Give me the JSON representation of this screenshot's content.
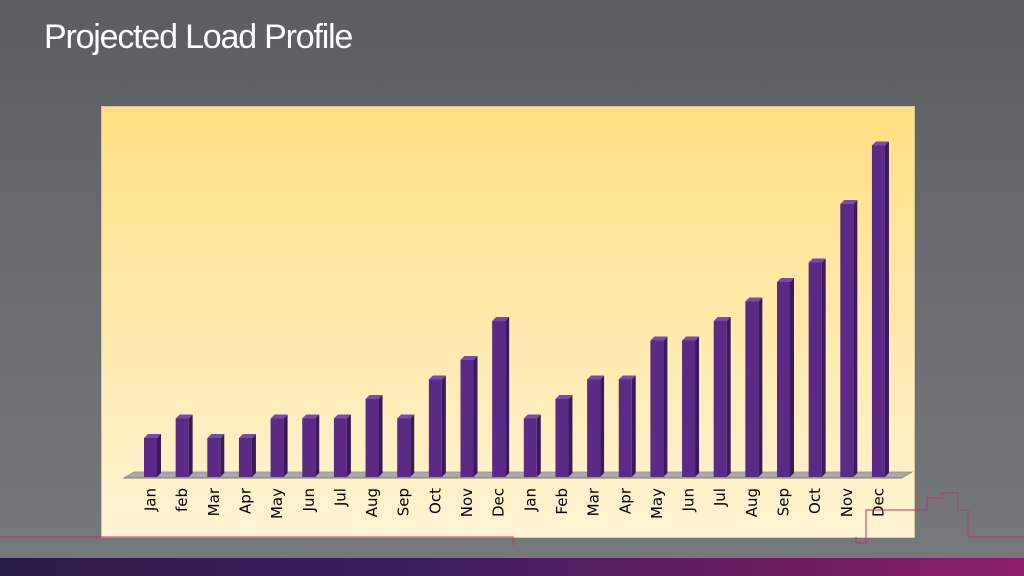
{
  "slide": {
    "title": "Projected Load Profile"
  },
  "colors": {
    "bar_front": "#5b2a86",
    "bar_side": "#3a1a5c",
    "bar_top": "#7a4aa6",
    "floor": "#a9a9a9",
    "accent_line": "#c0306f"
  },
  "chart_data": {
    "type": "bar",
    "title": "",
    "xlabel": "",
    "ylabel": "",
    "ylim": [
      0,
      18
    ],
    "grid": false,
    "legend": "none",
    "categories": [
      "Jan",
      "feb",
      "Mar",
      "Apr",
      "May",
      "Jun",
      "Jul",
      "Aug",
      "Sep",
      "Oct",
      "Nov",
      "Dec",
      "Jan",
      "Feb",
      "Mar",
      "Apr",
      "May",
      "Jun",
      "Jul",
      "Aug",
      "Sep",
      "Oct",
      "Nov",
      "Dec"
    ],
    "values": [
      2,
      3,
      2,
      2,
      3,
      3,
      3,
      4,
      3,
      5,
      6,
      8,
      3,
      4,
      5,
      5,
      7,
      7,
      8,
      9,
      10,
      11,
      14,
      17
    ]
  }
}
